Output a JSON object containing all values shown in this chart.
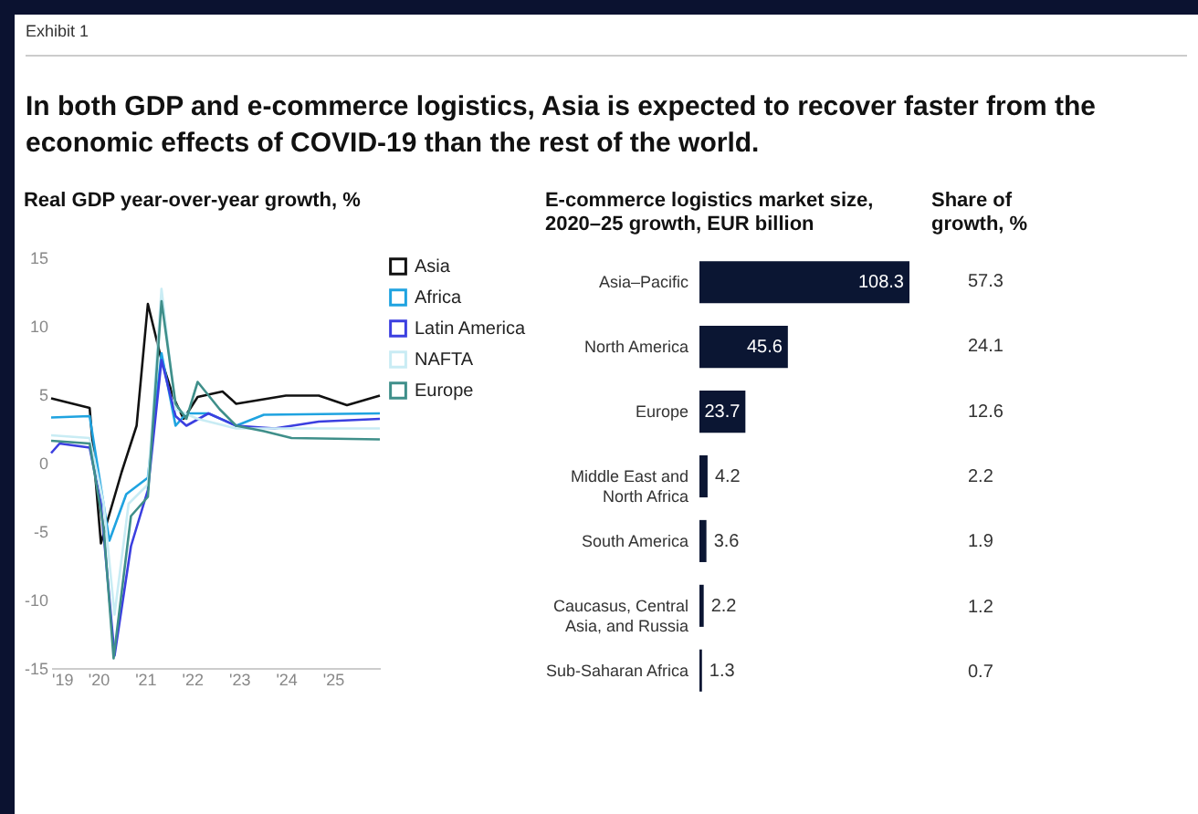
{
  "chart_data": [
    {
      "type": "other",
      "title": "In both GDP and e-commerce logistics, Asia is expected to recover faster from the economic effects of COVID-19 than the rest of the world.",
      "annotations": [
        "Exhibit 1"
      ]
    },
    {
      "type": "line",
      "title": "Real GDP year-over-year growth, %",
      "xlim": [
        2019,
        2026
      ],
      "xticks": [
        {
          "value": 2019,
          "label": "'19"
        },
        {
          "value": 2020,
          "label": "'20"
        },
        {
          "value": 2021,
          "label": "'21"
        },
        {
          "value": 2022,
          "label": "'22"
        },
        {
          "value": 2023,
          "label": "'23"
        },
        {
          "value": 2024,
          "label": "'24"
        },
        {
          "value": 2025,
          "label": "'25"
        }
      ],
      "ylim": [
        -15,
        15
      ],
      "yticks": [
        15,
        10,
        5,
        0,
        -5,
        -10,
        -15
      ],
      "legend": "right",
      "grid": false,
      "series": [
        {
          "name": "Asia",
          "color": "#111111",
          "x": [
            2019,
            2019.82,
            2020.06,
            2020.5,
            2020.82,
            2021.06,
            2021.35,
            2021.6,
            2021.82,
            2022.12,
            2022.65,
            2022.94,
            2024,
            2024.7,
            2025.3,
            2026
          ],
          "values": [
            4.7,
            4,
            -5.9,
            -0.7,
            2.7,
            11.6,
            7.5,
            4.8,
            3.2,
            4.8,
            5.2,
            4.3,
            4.9,
            4.9,
            4.2,
            4.9
          ]
        },
        {
          "name": "Africa",
          "color": "#1fa3e0",
          "x": [
            2019,
            2019.82,
            2020.24,
            2020.6,
            2021.06,
            2021.35,
            2021.65,
            2021.88,
            2022.35,
            2022.94,
            2023.53,
            2026
          ],
          "values": [
            3.3,
            3.4,
            -5.7,
            -2.3,
            -1.1,
            8,
            2.7,
            3.6,
            3.6,
            2.7,
            3.5,
            3.6
          ]
        },
        {
          "name": "Latin America",
          "color": "#3b3fe0",
          "x": [
            2019,
            2019.18,
            2019.82,
            2020.06,
            2020.35,
            2020.7,
            2021.06,
            2021.35,
            2021.65,
            2021.88,
            2022.35,
            2022.94,
            2023.76,
            2024.7,
            2026
          ],
          "values": [
            0.7,
            1.4,
            1.1,
            -3,
            -14.1,
            -6.1,
            -2,
            7.5,
            3.4,
            2.7,
            3.6,
            2.7,
            2.5,
            3,
            3.2
          ]
        },
        {
          "name": "NAFTA",
          "color": "#c9ecf4",
          "x": [
            2019,
            2019.82,
            2020.12,
            2020.35,
            2020.65,
            2021.06,
            2021.35,
            2021.65,
            2022.12,
            2022.94,
            2026
          ],
          "values": [
            2,
            1.8,
            -3,
            -11.1,
            -3,
            -1.6,
            12.7,
            3.9,
            3.2,
            2.5,
            2.5
          ]
        },
        {
          "name": "Europe",
          "color": "#3f8f8a",
          "x": [
            2019,
            2019.82,
            2020.12,
            2020.33,
            2020.7,
            2021.06,
            2021.35,
            2021.65,
            2021.88,
            2022.12,
            2022.59,
            2022.94,
            2023.53,
            2024.12,
            2026
          ],
          "values": [
            1.6,
            1.4,
            -4.8,
            -14.3,
            -3.9,
            -2.5,
            11.8,
            4.3,
            3.2,
            5.9,
            3.9,
            2.7,
            2.3,
            1.8,
            1.7
          ]
        }
      ]
    },
    {
      "type": "bar",
      "orientation": "horizontal",
      "title": "E-commerce logistics market size, 2020–25 growth, EUR billion",
      "categories": [
        "Asia–Pacific",
        "North America",
        "Europe",
        "Middle East and North Africa",
        "South America",
        "Caucasus, Central Asia, and Russia",
        "Sub-Saharan Africa"
      ],
      "values": [
        108.3,
        45.6,
        23.7,
        4.2,
        3.6,
        2.2,
        1.3
      ],
      "color": "#0b1633",
      "data_labels": true
    },
    {
      "type": "other",
      "title": "Share of growth, %",
      "annotations": [
        "57.3",
        "24.1",
        "12.6",
        "2.2",
        "1.9",
        "1.2",
        "0.7"
      ]
    }
  ]
}
